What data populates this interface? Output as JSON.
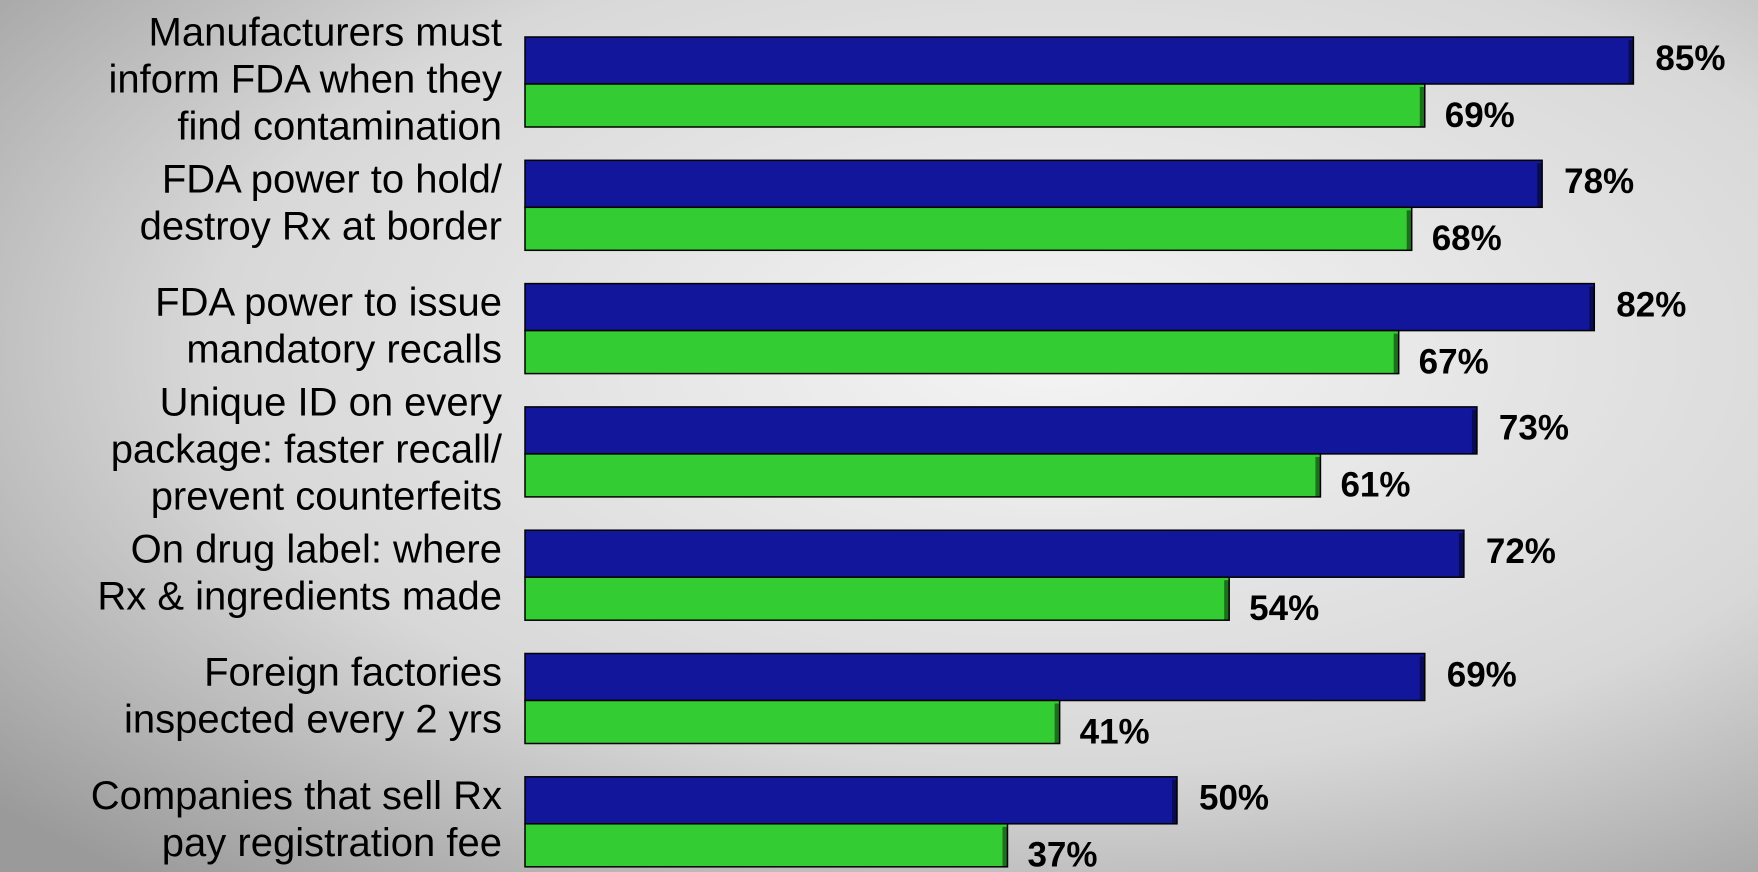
{
  "chart_data": {
    "type": "hbar",
    "categories": [
      [
        "Manufacturers must",
        "inform FDA when they",
        "find contamination"
      ],
      [
        "FDA power to hold/",
        "destroy Rx at border"
      ],
      [
        "FDA power to issue",
        "mandatory recalls"
      ],
      [
        "Unique ID on every",
        "package:  faster recall/",
        "prevent counterfeits"
      ],
      [
        "On drug label:  where",
        "Rx & ingredients made"
      ],
      [
        "Foreign factories",
        "inspected every 2 yrs"
      ],
      [
        "Companies that sell Rx",
        "pay registration fee"
      ]
    ],
    "series": [
      {
        "color": "#12169a",
        "values": [
          85,
          78,
          82,
          73,
          72,
          69,
          50
        ],
        "value_labels": [
          "85%",
          "78%",
          "82%",
          "73%",
          "72%",
          "69%",
          "50%"
        ]
      },
      {
        "color": "#33cc33",
        "values": [
          69,
          68,
          67,
          61,
          54,
          41,
          37
        ],
        "value_labels": [
          "69%",
          "68%",
          "67%",
          "61%",
          "54%",
          "41%",
          "37%"
        ]
      }
    ],
    "xlim": [
      0,
      100
    ]
  }
}
